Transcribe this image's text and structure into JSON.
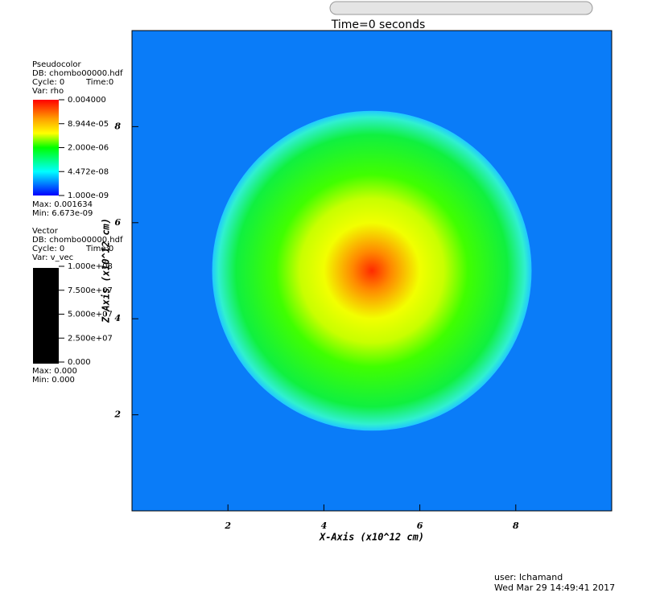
{
  "chart_data": {
    "type": "pseudocolor",
    "title": "Time=0 seconds",
    "x_label": "X-Axis (x10^12 cm)",
    "y_label": "Z-Axis (x10^12 cm)",
    "xlim": [
      0,
      10
    ],
    "ylim": [
      0,
      10
    ],
    "xticks": [
      2,
      4,
      6,
      8
    ],
    "yticks": [
      2,
      4,
      6,
      8
    ],
    "background_color": "#0a7cf8",
    "sphere": {
      "center": [
        5,
        5
      ],
      "radius": 3.33
    }
  },
  "legends": [
    {
      "plot": "Pseudocolor",
      "db": "DB: chombo00000.hdf",
      "cycle": "Cycle: 0",
      "time": "Time:0",
      "var": "Var: rho",
      "labels": [
        "0.004000",
        "8.944e-05",
        "2.000e-06",
        "4.472e-08",
        "1.000e-09"
      ],
      "max": "Max: 0.001634",
      "min": "Min: 6.673e-09"
    },
    {
      "plot": "Vector",
      "db": "DB: chombo00000.hdf",
      "cycle": "Cycle: 0",
      "time": "Time:0",
      "var": "Var: v_vec",
      "labels": [
        "1.000e+08",
        "7.500e+07",
        "5.000e+07",
        "2.500e+07",
        "0.000"
      ],
      "max": "Max: 0.000",
      "min": "Min: 0.000"
    }
  ],
  "footer": {
    "user": "user: lchamand",
    "date": "Wed Mar 29 14:49:41 2017"
  }
}
